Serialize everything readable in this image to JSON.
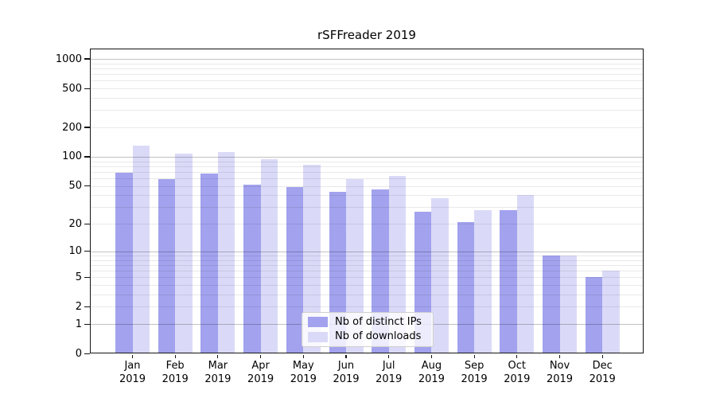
{
  "title": "rSFFreader 2019",
  "legend": {
    "items": [
      {
        "label": "Nb of distinct IPs",
        "color": "#a2a2ee"
      },
      {
        "label": "Nb of downloads",
        "color": "#dadaf8"
      }
    ]
  },
  "y_axis": {
    "tick_labels": [
      "0",
      "1",
      "2",
      "5",
      "10",
      "20",
      "50",
      "100",
      "200",
      "500",
      "1000"
    ]
  },
  "chart_data": {
    "type": "bar",
    "title": "rSFFreader 2019",
    "categories": [
      "Jan 2019",
      "Feb 2019",
      "Mar 2019",
      "Apr 2019",
      "May 2019",
      "Jun 2019",
      "Jul 2019",
      "Aug 2019",
      "Sep 2019",
      "Oct 2019",
      "Nov 2019",
      "Dec 2019"
    ],
    "series": [
      {
        "name": "Nb of distinct IPs",
        "color": "#a2a2ee",
        "values": [
          68,
          59,
          67,
          52,
          49,
          43,
          46,
          27,
          21,
          28,
          9,
          5
        ]
      },
      {
        "name": "Nb of downloads",
        "color": "#dadaf8",
        "values": [
          130,
          108,
          112,
          95,
          82,
          59,
          64,
          37,
          28,
          40,
          9,
          6
        ]
      }
    ],
    "xlabel": "",
    "ylabel": "",
    "yscale": "log1p",
    "y_ticks": [
      0,
      1,
      2,
      5,
      10,
      20,
      50,
      100,
      200,
      500,
      1000
    ],
    "y_minor_ticks": [
      2,
      3,
      4,
      5,
      6,
      7,
      8,
      9,
      20,
      30,
      40,
      50,
      60,
      70,
      80,
      90,
      200,
      300,
      400,
      500,
      600,
      700,
      800,
      900
    ],
    "y_major_gridlines": [
      1,
      10,
      100,
      1000
    ],
    "ylim": [
      0,
      1275
    ],
    "grid": true,
    "legend_position": "lower center"
  }
}
